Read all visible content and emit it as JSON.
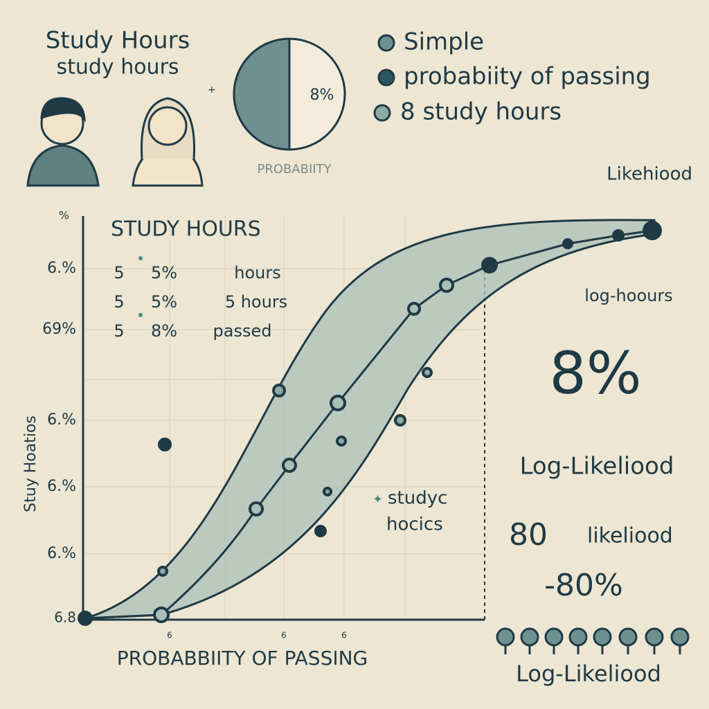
{
  "header": {
    "title": "Study Hours",
    "subtitle": "study hours"
  },
  "pie": {
    "label": "8%",
    "caption": "PROBABIITY"
  },
  "legend": [
    "Simple",
    "probabiity of passing",
    "8 study hours"
  ],
  "likelihood_label": "Likehiood",
  "chart": {
    "y_title": "Stuy Hoatios",
    "y_ticks": [
      "%",
      "6.%",
      "69%",
      "6.%",
      "6.%",
      "6.%",
      "6.8"
    ],
    "inset_title": "STUDY HOURS",
    "inset_rows": [
      [
        "5",
        "5%",
        "hours"
      ],
      [
        "5",
        "5%",
        "5 hours"
      ],
      [
        "5",
        "8%",
        "passed"
      ]
    ],
    "x_ticks": [
      "6",
      "6",
      "6"
    ],
    "x_title": "PROBABBIITY OF PASSING",
    "annotation": [
      "studyc",
      "hocics"
    ]
  },
  "side": {
    "subtitle": "log-hoours",
    "big_value": "8%",
    "heading": "Log-Likeliood",
    "value_a": "80",
    "value_a_label": "likeliood",
    "value_b": "-80%",
    "footer": "Log-Likeliood"
  }
}
